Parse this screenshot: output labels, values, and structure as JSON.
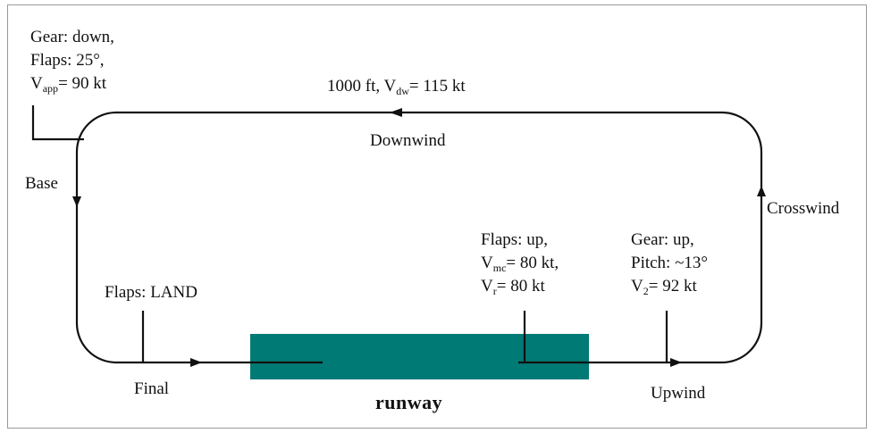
{
  "colors": {
    "runway": "#007a75",
    "line": "#111111",
    "border": "#9a9a9a"
  },
  "annotations": {
    "approach": {
      "gear": "Gear: down,",
      "flaps": "Flaps: 25°,",
      "speed_symbol": "V",
      "speed_sub": "app",
      "speed_value": "= 90 kt"
    },
    "downwind_info": {
      "altitude_prefix": "1000 ft, V",
      "speed_sub": "dw",
      "speed_value": "= 115 kt"
    },
    "takeoff": {
      "flaps": "Flaps: up,",
      "vmc_symbol": "V",
      "vmc_sub": "mc",
      "vmc_value": "= 80 kt,",
      "vr_symbol": "V",
      "vr_sub": "r",
      "vr_value": "= 80 kt"
    },
    "climb": {
      "gear": "Gear: up,",
      "pitch": "Pitch: ~13°",
      "v2_symbol": "V",
      "v2_sub": "2",
      "v2_value": "= 92 kt"
    },
    "final_flaps": "Flaps: LAND"
  },
  "legs": {
    "downwind": "Downwind",
    "base": "Base",
    "crosswind": "Crosswind",
    "final": "Final",
    "upwind": "Upwind"
  },
  "runway_label": "runway"
}
